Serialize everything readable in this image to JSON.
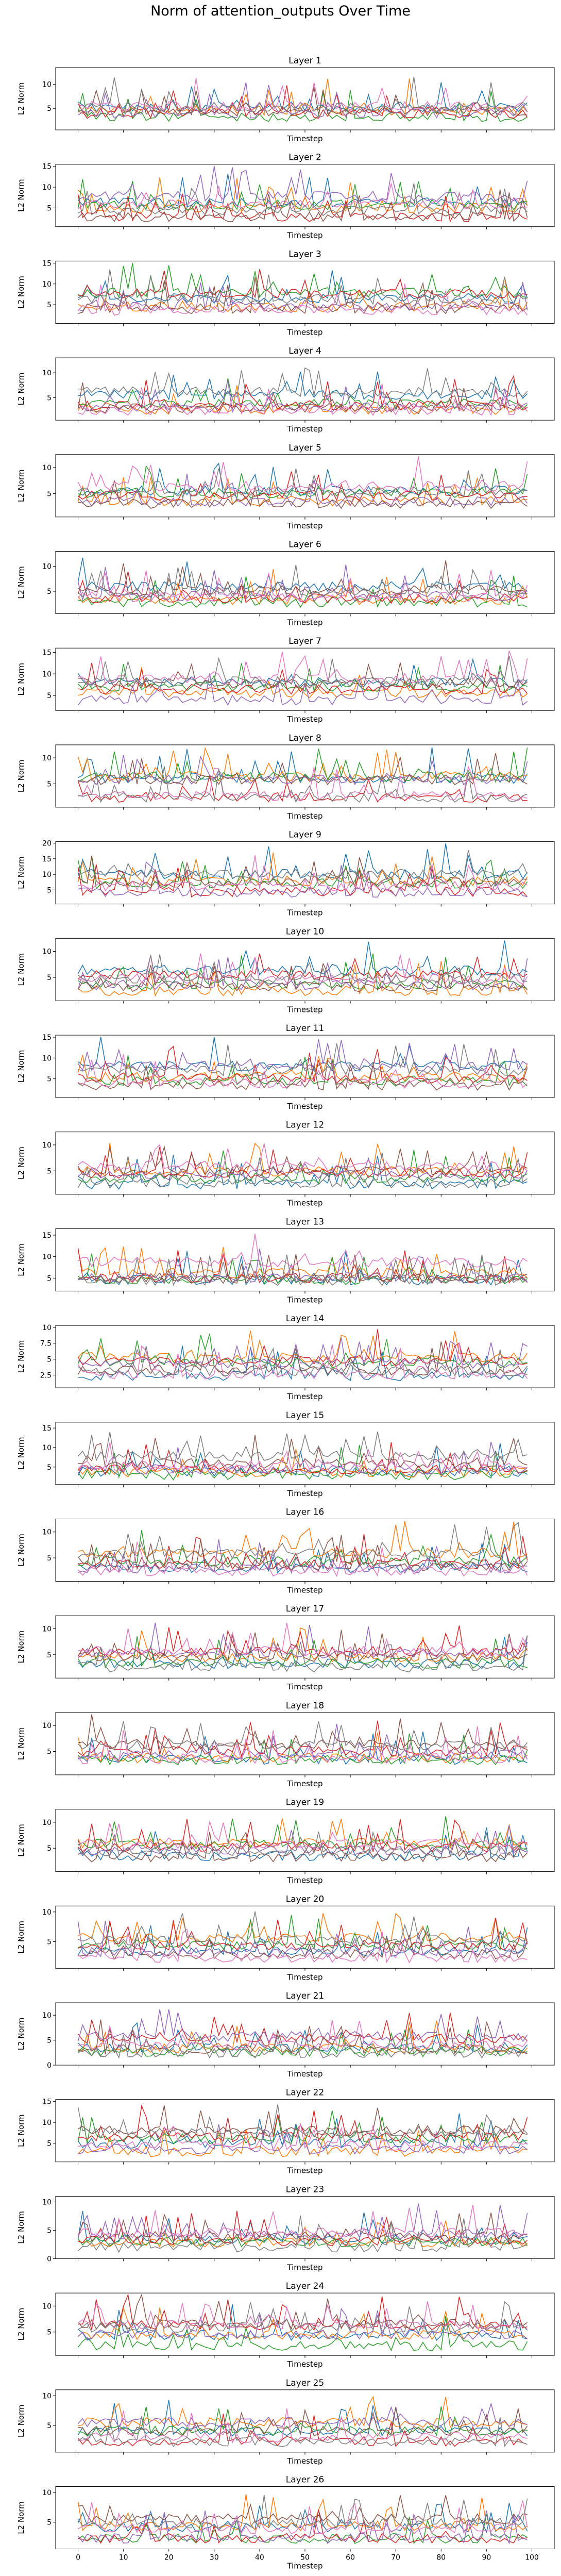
{
  "figure": {
    "title": "Norm of attention_outputs Over Time"
  },
  "colors": [
    "#1f77b4",
    "#ff7f0e",
    "#2ca02c",
    "#d62728",
    "#9467bd",
    "#8c564b",
    "#e377c2",
    "#7f7f7f"
  ],
  "chart_data": {
    "type": "line",
    "xlabel": "Timestep",
    "ylabel": "L2 Norm",
    "xlim": [
      0,
      100
    ],
    "xticks": [
      0,
      10,
      20,
      30,
      40,
      50,
      60,
      70,
      80,
      90,
      100
    ],
    "x_tick_labels_shown_on": "bottom panel only",
    "series_count_per_panel": 8,
    "series_values_note": "Dense multi-series noise; per-timestep values are not individually readable at this resolution.",
    "panels": [
      {
        "title": "Layer 1",
        "ylim": [
          0.5,
          13.5
        ],
        "yticks": [
          5,
          10
        ]
      },
      {
        "title": "Layer 2",
        "ylim": [
          0.5,
          15.5
        ],
        "yticks": [
          5,
          10,
          15
        ]
      },
      {
        "title": "Layer 3",
        "ylim": [
          0.5,
          15.5
        ],
        "yticks": [
          5,
          10,
          15
        ]
      },
      {
        "title": "Layer 4",
        "ylim": [
          0.5,
          13.0
        ],
        "yticks": [
          5,
          10
        ]
      },
      {
        "title": "Layer 5",
        "ylim": [
          0.5,
          12.5
        ],
        "yticks": [
          5,
          10
        ]
      },
      {
        "title": "Layer 6",
        "ylim": [
          0.5,
          13.0
        ],
        "yticks": [
          5,
          10
        ]
      },
      {
        "title": "Layer 7",
        "ylim": [
          1.5,
          16.0
        ],
        "yticks": [
          5,
          10,
          15
        ]
      },
      {
        "title": "Layer 8",
        "ylim": [
          0.5,
          12.5
        ],
        "yticks": [
          5,
          10
        ]
      },
      {
        "title": "Layer 9",
        "ylim": [
          0.5,
          20.5
        ],
        "yticks": [
          5,
          10,
          15,
          20
        ]
      },
      {
        "title": "Layer 10",
        "ylim": [
          0.5,
          12.5
        ],
        "yticks": [
          5,
          10
        ]
      },
      {
        "title": "Layer 11",
        "ylim": [
          0.5,
          15.5
        ],
        "yticks": [
          5,
          10,
          15
        ]
      },
      {
        "title": "Layer 12",
        "ylim": [
          0.5,
          12.5
        ],
        "yticks": [
          5,
          10
        ]
      },
      {
        "title": "Layer 13",
        "ylim": [
          2.0,
          16.5
        ],
        "yticks": [
          5,
          10,
          15
        ]
      },
      {
        "title": "Layer 14",
        "ylim": [
          0.5,
          10.3
        ],
        "yticks": [
          2.5,
          5.0,
          7.5,
          10.0
        ]
      },
      {
        "title": "Layer 15",
        "ylim": [
          0.5,
          16.5
        ],
        "yticks": [
          5,
          10,
          15
        ]
      },
      {
        "title": "Layer 16",
        "ylim": [
          0.5,
          12.5
        ],
        "yticks": [
          5,
          10
        ]
      },
      {
        "title": "Layer 17",
        "ylim": [
          0.5,
          12.5
        ],
        "yticks": [
          5,
          10
        ]
      },
      {
        "title": "Layer 18",
        "ylim": [
          0.5,
          12.5
        ],
        "yticks": [
          5,
          10
        ]
      },
      {
        "title": "Layer 19",
        "ylim": [
          0.5,
          12.5
        ],
        "yticks": [
          5,
          10
        ]
      },
      {
        "title": "Layer 20",
        "ylim": [
          0.5,
          11.0
        ],
        "yticks": [
          5,
          10
        ]
      },
      {
        "title": "Layer 21",
        "ylim": [
          0.0,
          12.5
        ],
        "yticks": [
          0,
          5,
          10
        ]
      },
      {
        "title": "Layer 22",
        "ylim": [
          0.5,
          15.5
        ],
        "yticks": [
          5,
          10,
          15
        ]
      },
      {
        "title": "Layer 23",
        "ylim": [
          0.0,
          11.0
        ],
        "yticks": [
          0,
          5,
          10
        ]
      },
      {
        "title": "Layer 24",
        "ylim": [
          0.5,
          12.5
        ],
        "yticks": [
          5,
          10
        ]
      },
      {
        "title": "Layer 25",
        "ylim": [
          0.5,
          11.0
        ],
        "yticks": [
          5,
          10
        ]
      },
      {
        "title": "Layer 26",
        "ylim": [
          0.5,
          11.0
        ],
        "yticks": [
          5,
          10
        ]
      }
    ]
  }
}
